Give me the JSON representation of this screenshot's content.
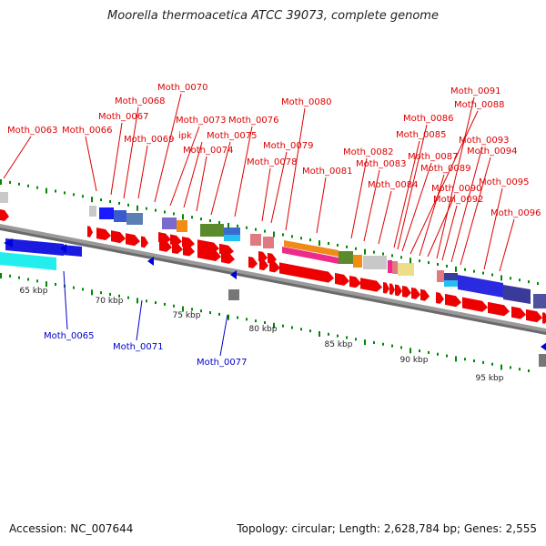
{
  "title": "Moorella thermoacetica ATCC 39073, complete genome",
  "footer": {
    "accession": "Accession: NC_007644",
    "topology": "Topology: circular; Length: 2,628,784 bp; Genes: 2,555"
  },
  "colors": {
    "forward_label": "#dd0000",
    "reverse_label": "#0000cc",
    "tick": "#008800",
    "backbone": "#888888"
  },
  "ticks": [
    {
      "label": "65 kbp"
    },
    {
      "label": "70 kbp"
    },
    {
      "label": "75 kbp"
    },
    {
      "label": "80 kbp"
    },
    {
      "label": "85 kbp"
    },
    {
      "label": "90 kbp"
    },
    {
      "label": "95 kbp"
    }
  ],
  "forward_labels": [
    {
      "text": "Moth_0063"
    },
    {
      "text": "Moth_0066"
    },
    {
      "text": "Moth_0067"
    },
    {
      "text": "Moth_0068"
    },
    {
      "text": "Moth_0069"
    },
    {
      "text": "Moth_0070"
    },
    {
      "text": "Moth_0073"
    },
    {
      "text": "ipk"
    },
    {
      "text": "Moth_0074"
    },
    {
      "text": "Moth_0075"
    },
    {
      "text": "Moth_0076"
    },
    {
      "text": "Moth_0078"
    },
    {
      "text": "Moth_0079"
    },
    {
      "text": "Moth_0080"
    },
    {
      "text": "Moth_0081"
    },
    {
      "text": "Moth_0082"
    },
    {
      "text": "Moth_0083"
    },
    {
      "text": "Moth_0084"
    },
    {
      "text": "Moth_0085"
    },
    {
      "text": "Moth_0086"
    },
    {
      "text": "Moth_0087"
    },
    {
      "text": "Moth_0088"
    },
    {
      "text": "Moth_0089"
    },
    {
      "text": "Moth_0090"
    },
    {
      "text": "Moth_0091"
    },
    {
      "text": "Moth_0092"
    },
    {
      "text": "Moth_0093"
    },
    {
      "text": "Moth_0094"
    },
    {
      "text": "Moth_0095"
    },
    {
      "text": "Moth_0096"
    }
  ],
  "reverse_labels": [
    {
      "text": "Moth_0065"
    },
    {
      "text": "Moth_0071"
    },
    {
      "text": "Moth_0077"
    }
  ]
}
